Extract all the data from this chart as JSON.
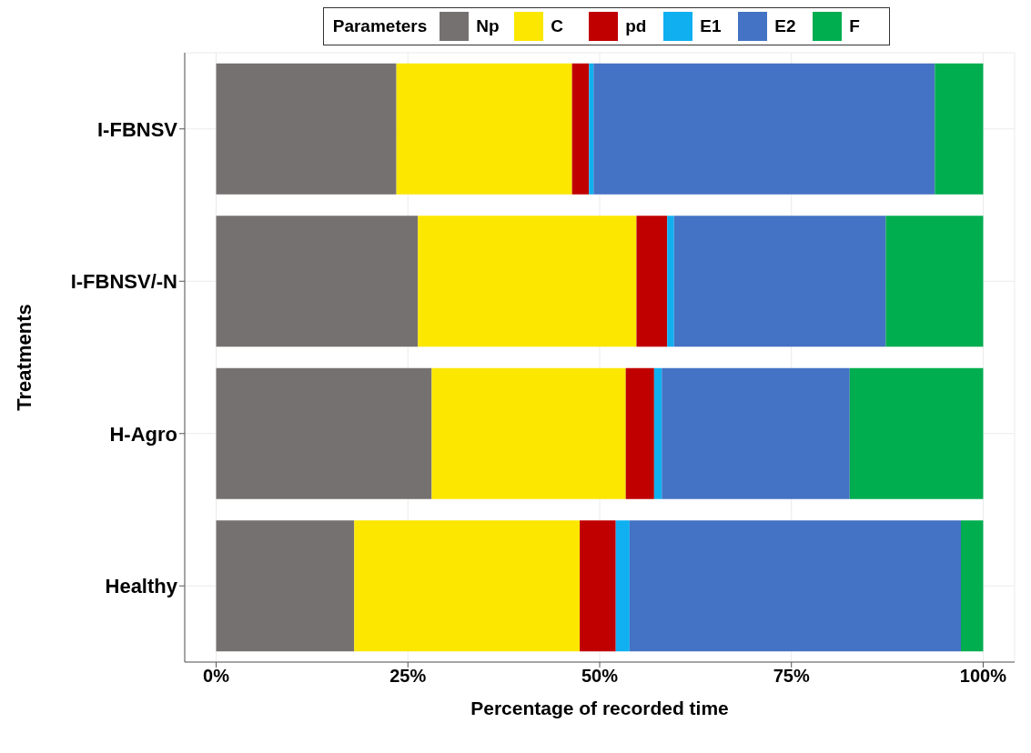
{
  "chart_data": {
    "type": "bar",
    "orientation": "horizontal",
    "stacked": true,
    "xlabel": "Percentage of recorded time",
    "ylabel": "Treatments",
    "legend_title": "Parameters",
    "legend": "top",
    "grid": true,
    "categories": [
      "I-FBNSV",
      "I-FBNSV/-N",
      "H-Agro",
      "Healthy"
    ],
    "xlim": [
      -4.1,
      104.1
    ],
    "xticks": [
      {
        "value": 0,
        "label": "0%"
      },
      {
        "value": 25,
        "label": "25%"
      },
      {
        "value": 50,
        "label": "50%"
      },
      {
        "value": 75,
        "label": "75%"
      },
      {
        "value": 100,
        "label": "100%"
      }
    ],
    "series": [
      {
        "name": "Np",
        "color": "#767171",
        "values": [
          23.5,
          26.3,
          28.1,
          18.0
        ]
      },
      {
        "name": "C",
        "color": "#fbe700",
        "values": [
          22.9,
          28.5,
          25.3,
          29.4
        ]
      },
      {
        "name": "pd",
        "color": "#c00000",
        "values": [
          2.2,
          4.0,
          3.7,
          4.7
        ]
      },
      {
        "name": "E1",
        "color": "#10b0f0",
        "values": [
          0.6,
          0.9,
          1.0,
          1.8
        ]
      },
      {
        "name": "E2",
        "color": "#4472c4",
        "values": [
          44.5,
          27.6,
          24.5,
          43.2
        ]
      },
      {
        "name": "F",
        "color": "#00ad4f",
        "values": [
          6.3,
          12.7,
          17.4,
          2.9
        ]
      }
    ]
  }
}
